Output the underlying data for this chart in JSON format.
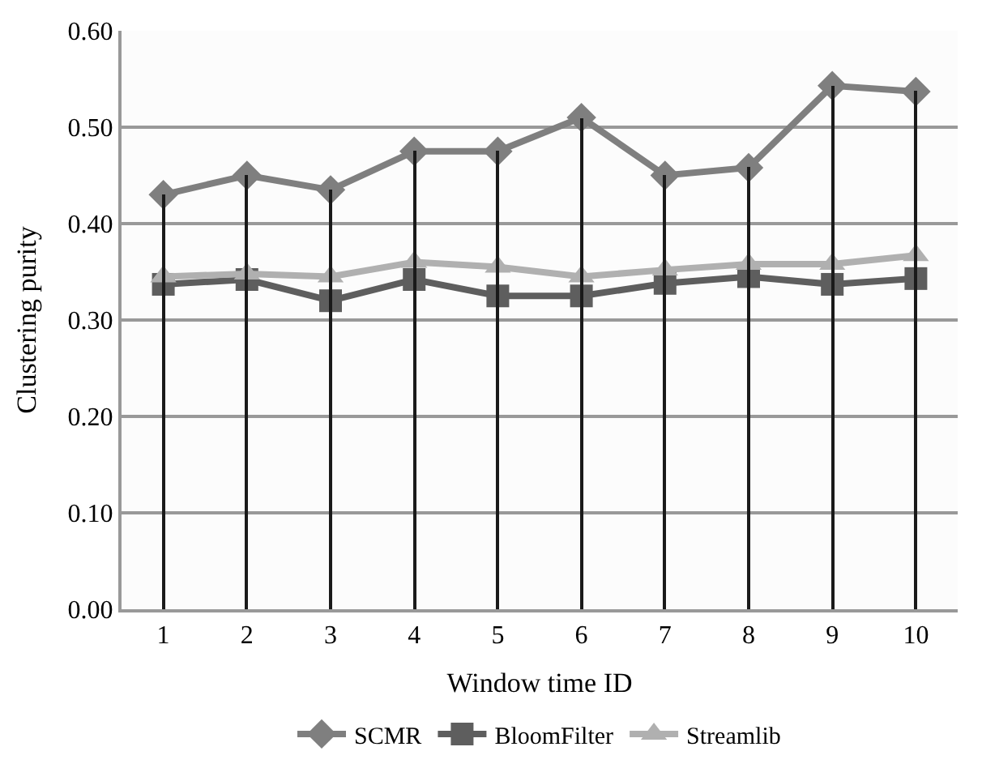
{
  "chart_data": {
    "type": "line",
    "xlabel": "Window time ID",
    "ylabel": "Clustering purity",
    "categories": [
      "1",
      "2",
      "3",
      "4",
      "5",
      "6",
      "7",
      "8",
      "9",
      "10"
    ],
    "ylim": [
      0,
      0.6
    ],
    "yticks": [
      {
        "value": 0,
        "label": "0.00"
      },
      {
        "value": 0.1,
        "label": "0.10"
      },
      {
        "value": 0.2,
        "label": "0.20"
      },
      {
        "value": 0.3,
        "label": "0.30"
      },
      {
        "value": 0.4,
        "label": "0.40"
      },
      {
        "value": 0.5,
        "label": "0.50"
      },
      {
        "value": 0.6,
        "label": "0.60"
      }
    ],
    "grid": "y",
    "legend": "bottom",
    "series": [
      {
        "type": "bar",
        "color": "#1a1a1a",
        "values": [
          0.43,
          0.45,
          0.435,
          0.475,
          0.475,
          0.51,
          0.45,
          0.458,
          0.543,
          0.537
        ]
      },
      {
        "name": "SCMR",
        "color": "#7f7f7f",
        "marker": "diamond",
        "values": [
          0.43,
          0.45,
          0.435,
          0.475,
          0.475,
          0.51,
          0.45,
          0.458,
          0.543,
          0.537
        ]
      },
      {
        "name": "BloomFilter",
        "color": "#5e5e5e",
        "marker": "square",
        "values": [
          0.337,
          0.342,
          0.32,
          0.342,
          0.325,
          0.325,
          0.338,
          0.345,
          0.337,
          0.343
        ]
      },
      {
        "name": "Streamlib",
        "color": "#b0b0b0",
        "marker": "triangle",
        "values": [
          0.345,
          0.348,
          0.345,
          0.36,
          0.355,
          0.345,
          0.352,
          0.358,
          0.358,
          0.367
        ]
      }
    ]
  }
}
